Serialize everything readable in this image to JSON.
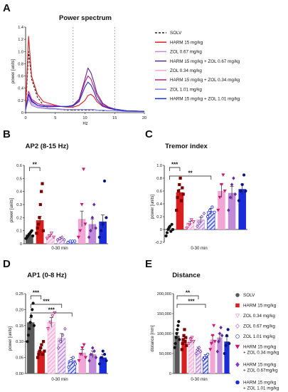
{
  "chart_data": [
    {
      "panel": "A",
      "type": "line",
      "title": "Power spectrum",
      "xlabel": "Hz",
      "ylabel": "power [units]",
      "xlim": [
        0,
        20
      ],
      "ylim": [
        0,
        1.4
      ],
      "xticks": [
        "0",
        "5",
        "10",
        "15",
        "20"
      ],
      "yticks": [
        "0",
        "0.2",
        "0.4",
        "0.6",
        "0.8",
        "1.0",
        "1.2",
        "1.4"
      ],
      "reference_lines_hz": [
        8,
        15
      ],
      "x": [
        0,
        0.5,
        1,
        2,
        3,
        4,
        5,
        6,
        7,
        8,
        9,
        10,
        10.5,
        11,
        11.5,
        12,
        13,
        14,
        15,
        17,
        20
      ],
      "series": [
        {
          "name": "SOLV",
          "color": "#222222",
          "dash": true,
          "values": [
            0.05,
            1.0,
            0.55,
            0.25,
            0.12,
            0.08,
            0.06,
            0.05,
            0.04,
            0.04,
            0.04,
            0.04,
            0.04,
            0.04,
            0.04,
            0.04,
            0.03,
            0.03,
            0.03,
            0.02,
            0.02
          ]
        },
        {
          "name": "HARM 15 mg/kg",
          "color": "#d81e1e",
          "dash": false,
          "values": [
            0.05,
            1.25,
            0.6,
            0.3,
            0.18,
            0.15,
            0.12,
            0.1,
            0.09,
            0.09,
            0.12,
            0.2,
            0.28,
            0.3,
            0.26,
            0.18,
            0.1,
            0.07,
            0.05,
            0.03,
            0.02
          ]
        },
        {
          "name": "ZOL 0.67 mg/kg",
          "color": "#c08ad8",
          "dash": false,
          "values": [
            0.05,
            0.28,
            0.15,
            0.1,
            0.08,
            0.08,
            0.07,
            0.06,
            0.05,
            0.05,
            0.05,
            0.05,
            0.05,
            0.05,
            0.05,
            0.04,
            0.04,
            0.03,
            0.03,
            0.02,
            0.02
          ]
        },
        {
          "name": "HARM 15 mg/kg + ZOL 0.67 mg/kg",
          "color": "#5a2a8c",
          "dash": false,
          "values": [
            0.05,
            0.3,
            0.2,
            0.12,
            0.1,
            0.1,
            0.1,
            0.1,
            0.1,
            0.12,
            0.22,
            0.55,
            0.73,
            0.65,
            0.5,
            0.32,
            0.15,
            0.09,
            0.06,
            0.03,
            0.02
          ]
        },
        {
          "name": "ZOL 0.34 mg/kg",
          "color": "#f2a6d6",
          "dash": false,
          "values": [
            0.05,
            0.26,
            0.14,
            0.1,
            0.08,
            0.07,
            0.06,
            0.06,
            0.05,
            0.05,
            0.05,
            0.05,
            0.05,
            0.05,
            0.05,
            0.04,
            0.04,
            0.03,
            0.03,
            0.02,
            0.02
          ]
        },
        {
          "name": "HARM 15 mg/kg + ZOL 0.34 mg/kg",
          "color": "#c51b7d",
          "dash": false,
          "values": [
            0.05,
            0.35,
            0.22,
            0.15,
            0.12,
            0.12,
            0.11,
            0.1,
            0.1,
            0.11,
            0.2,
            0.5,
            0.6,
            0.55,
            0.42,
            0.28,
            0.13,
            0.08,
            0.05,
            0.03,
            0.02
          ]
        },
        {
          "name": "ZOL 1.01 mg/kg",
          "color": "#7a86e0",
          "dash": false,
          "values": [
            0.05,
            0.22,
            0.12,
            0.08,
            0.07,
            0.06,
            0.06,
            0.05,
            0.05,
            0.05,
            0.05,
            0.05,
            0.05,
            0.05,
            0.05,
            0.04,
            0.04,
            0.03,
            0.03,
            0.02,
            0.02
          ]
        },
        {
          "name": "HARM 15 mg/kg + ZOL 1.01 mg/kg",
          "color": "#1a2bd8",
          "dash": false,
          "values": [
            0.05,
            0.3,
            0.18,
            0.12,
            0.1,
            0.1,
            0.1,
            0.1,
            0.1,
            0.11,
            0.18,
            0.42,
            0.5,
            0.45,
            0.35,
            0.22,
            0.11,
            0.07,
            0.05,
            0.03,
            0.02
          ]
        }
      ]
    },
    {
      "panel": "B",
      "type": "bar",
      "title": "AP2 (8-15 Hz)",
      "ylabel": "power [units]",
      "xlabel": "0-30 min",
      "ylim": [
        0,
        0.6
      ],
      "yticks": [
        "0",
        "0.1",
        "0.2",
        "0.3",
        "0.4",
        "0.5",
        "0.6"
      ],
      "groups": [
        "SOLV",
        "HARM 15 mg/kg",
        "ZOL 0.34 mg/kg",
        "ZOL 0.67 mg/kg",
        "ZOL 1.01 mg/kg",
        "HARM 15 mg/kg + ZOL 0.34 mg/kg",
        "HARM 15 mg/kg + ZOL 0.67mg/kg",
        "HARM 15 mg/kg + ZOL 1.01 mg/kg"
      ],
      "values": [
        0.07,
        0.18,
        0.06,
        0.04,
        0.02,
        0.19,
        0.15,
        0.17
      ],
      "errors": [
        0.01,
        0.03,
        0.01,
        0.01,
        0.005,
        0.06,
        0.04,
        0.05
      ],
      "points": [
        [
          0.04,
          0.05,
          0.06,
          0.07,
          0.08,
          0.09,
          0.1,
          0.06
        ],
        [
          0.08,
          0.12,
          0.15,
          0.2,
          0.3,
          0.4,
          0.46,
          0.1
        ],
        [
          0.04,
          0.06,
          0.08,
          0.05
        ],
        [
          0.03,
          0.04,
          0.05,
          0.03
        ],
        [
          0.01,
          0.02,
          0.02,
          0.02
        ],
        [
          0.05,
          0.1,
          0.3,
          0.57,
          0.15
        ],
        [
          0.05,
          0.1,
          0.2,
          0.3,
          0.12
        ],
        [
          0.05,
          0.1,
          0.15,
          0.48,
          0.2
        ]
      ],
      "significance": [
        {
          "from": 0,
          "to": 1,
          "label": "**"
        }
      ]
    },
    {
      "panel": "C",
      "type": "bar",
      "title": "Tremor index",
      "ylabel": "power [units]",
      "xlabel": "0-30 min",
      "ylim": [
        -0.2,
        1.0
      ],
      "yticks": [
        "-0.2",
        "0",
        "0.2",
        "0.4",
        "0.6",
        "0.8",
        "1.0"
      ],
      "groups": [
        "SOLV",
        "HARM 15 mg/kg",
        "ZOL 0.34 mg/kg",
        "ZOL 0.67 mg/kg",
        "ZOL 1.01 mg/kg",
        "HARM 15 mg/kg + ZOL 0.34 mg/kg",
        "HARM 15 mg/kg + ZOL 0.67mg/kg",
        "HARM 15 mg/kg + ZOL 1.01 mg/kg"
      ],
      "values": [
        0.0,
        0.58,
        0.1,
        0.15,
        0.28,
        0.6,
        0.57,
        0.63
      ],
      "errors": [
        0.02,
        0.05,
        0.03,
        0.04,
        0.05,
        0.1,
        0.1,
        0.08
      ],
      "points": [
        [
          -0.1,
          -0.05,
          0.0,
          0.03,
          0.05,
          -0.03,
          0.08,
          0.0
        ],
        [
          0.3,
          0.5,
          0.6,
          0.7,
          0.8,
          0.45,
          0.65,
          0.55
        ],
        [
          0.02,
          0.08,
          0.15,
          0.12
        ],
        [
          0.05,
          0.1,
          0.2,
          0.25
        ],
        [
          0.2,
          0.3,
          0.35,
          0.27
        ],
        [
          0.3,
          0.5,
          0.7,
          0.85,
          0.6
        ],
        [
          0.3,
          0.5,
          0.7,
          0.8,
          0.55
        ],
        [
          0.45,
          0.6,
          0.7,
          0.85,
          0.6
        ]
      ],
      "significance": [
        {
          "from": 0,
          "to": 1,
          "label": "***"
        },
        {
          "from": 0,
          "to": 4,
          "label": "**"
        }
      ]
    },
    {
      "panel": "D",
      "type": "bar",
      "title": "AP1 (0-8 Hz)",
      "ylabel": "power [units]",
      "xlabel": "0-30 min",
      "ylim": [
        0,
        0.25
      ],
      "yticks": [
        "0.00",
        "0.05",
        "0.10",
        "0.15",
        "0.20",
        "0.25"
      ],
      "groups": [
        "SOLV",
        "HARM 15 mg/kg",
        "ZOL 0.34 mg/kg",
        "ZOL 0.67 mg/kg",
        "ZOL 1.01 mg/kg",
        "HARM 15 mg/kg + ZOL 0.34 mg/kg",
        "HARM 15 mg/kg + ZOL 0.67mg/kg",
        "HARM 15 mg/kg + ZOL 1.01 mg/kg"
      ],
      "values": [
        0.16,
        0.07,
        0.16,
        0.11,
        0.04,
        0.065,
        0.06,
        0.05
      ],
      "errors": [
        0.015,
        0.01,
        0.015,
        0.015,
        0.01,
        0.01,
        0.01,
        0.01
      ],
      "points": [
        [
          0.1,
          0.12,
          0.14,
          0.16,
          0.18,
          0.2,
          0.22,
          0.15
        ],
        [
          0.05,
          0.06,
          0.07,
          0.08,
          0.09,
          0.06,
          0.1,
          0.07
        ],
        [
          0.14,
          0.16,
          0.18,
          0.19
        ],
        [
          0.08,
          0.1,
          0.12,
          0.14
        ],
        [
          0.02,
          0.04,
          0.05,
          0.03
        ],
        [
          0.04,
          0.06,
          0.08,
          0.09,
          0.05
        ],
        [
          0.04,
          0.06,
          0.08,
          0.07,
          0.05
        ],
        [
          0.03,
          0.05,
          0.07,
          0.06,
          0.04
        ]
      ],
      "significance": [
        {
          "from": 0,
          "to": 1,
          "label": "***"
        },
        {
          "from": 0,
          "to": 3,
          "label": "***"
        },
        {
          "from": 0,
          "to": 4,
          "label": "***"
        }
      ]
    },
    {
      "panel": "E",
      "type": "bar",
      "title": "Distance",
      "ylabel": "distance [mm]",
      "xlabel": "0-30 min",
      "ylim": [
        0,
        200000
      ],
      "yticks": [
        "0",
        "50,000",
        "100,000",
        "150,000",
        "200,000"
      ],
      "groups": [
        "SOLV",
        "HARM 15 mg/kg",
        "ZOL 0.34 mg/kg",
        "ZOL 0.67 mg/kg",
        "ZOL 1.01 mg/kg",
        "HARM 15 mg/kg + ZOL 0.34 mg/kg",
        "HARM 15 mg/kg + ZOL 0.67mg/kg",
        "HARM 15 mg/kg + ZOL 1.01 mg/kg"
      ],
      "values": [
        95000,
        85000,
        83000,
        60000,
        42000,
        85000,
        90000,
        80000
      ],
      "errors": [
        8000,
        7000,
        7000,
        6000,
        5000,
        10000,
        10000,
        12000
      ],
      "points": [
        [
          65000,
          75000,
          90000,
          100000,
          110000,
          120000,
          130000,
          85000
        ],
        [
          60000,
          75000,
          85000,
          95000,
          110000,
          80000,
          90000,
          70000
        ],
        [
          75000,
          85000,
          90000,
          80000
        ],
        [
          50000,
          60000,
          65000,
          55000
        ],
        [
          35000,
          40000,
          45000,
          48000
        ],
        [
          60000,
          75000,
          95000,
          120000,
          80000
        ],
        [
          55000,
          80000,
          100000,
          115000,
          95000
        ],
        [
          50000,
          70000,
          95000,
          110000,
          75000
        ]
      ],
      "significance": [
        {
          "from": 0,
          "to": 3,
          "label": "**"
        },
        {
          "from": 0,
          "to": 4,
          "label": "***"
        }
      ]
    }
  ],
  "panel_letters": [
    "A",
    "B",
    "C",
    "D",
    "E"
  ],
  "group_legend": [
    {
      "label": "SOLV",
      "color": "#595959",
      "marker": "dot"
    },
    {
      "label": "HARM 15 mg/kg",
      "color": "#d81e1e",
      "marker": "square"
    },
    {
      "label": "ZOL 0.34 mg/kg",
      "color": "#f2a6d6",
      "marker": "triangle-down"
    },
    {
      "label": "ZOL 0.67 mg/kg",
      "color": "#c08ad8",
      "marker": "diamond"
    },
    {
      "label": "ZOL 1.01 mg/kg",
      "color": "#4a5ad8",
      "marker": "circle"
    },
    {
      "label": "HARM 15 mg/kg\n+ ZOL 0.34 mg/kg",
      "color": "#c51b7d",
      "marker": "triangle-down-filled"
    },
    {
      "label": "HARM 15 mg/kg\n+ ZOL 0.67mg/kg",
      "color": "#8a3cc8",
      "marker": "diamond-filled"
    },
    {
      "label": "HARM 15 mg/kg\n+ ZOL 1.01 mg/kg",
      "color": "#1a2bd8",
      "marker": "dot"
    }
  ],
  "bar_styles": [
    {
      "fill": "#595959",
      "hatch": false,
      "point": "dot",
      "point_color": "#111111"
    },
    {
      "fill": "#d81e1e",
      "hatch": false,
      "point": "square",
      "point_color": "#7a0000"
    },
    {
      "fill": "#f2a6d6",
      "hatch": true,
      "point": "triangle-down",
      "point_color": "#c51b7d"
    },
    {
      "fill": "#c08ad8",
      "hatch": true,
      "point": "diamond",
      "point_color": "#7b3fa8"
    },
    {
      "fill": "#1a2bd8",
      "hatch": true,
      "point": "circle",
      "point_color": "#1a2bd8"
    },
    {
      "fill": "#f2a6d6",
      "hatch": false,
      "point": "triangle-down-filled",
      "point_color": "#c51b7d"
    },
    {
      "fill": "#c08ad8",
      "hatch": false,
      "point": "diamond-filled",
      "point_color": "#6a2a9c"
    },
    {
      "fill": "#1a2bd8",
      "hatch": false,
      "point": "dot",
      "point_color": "#0a1580"
    }
  ]
}
